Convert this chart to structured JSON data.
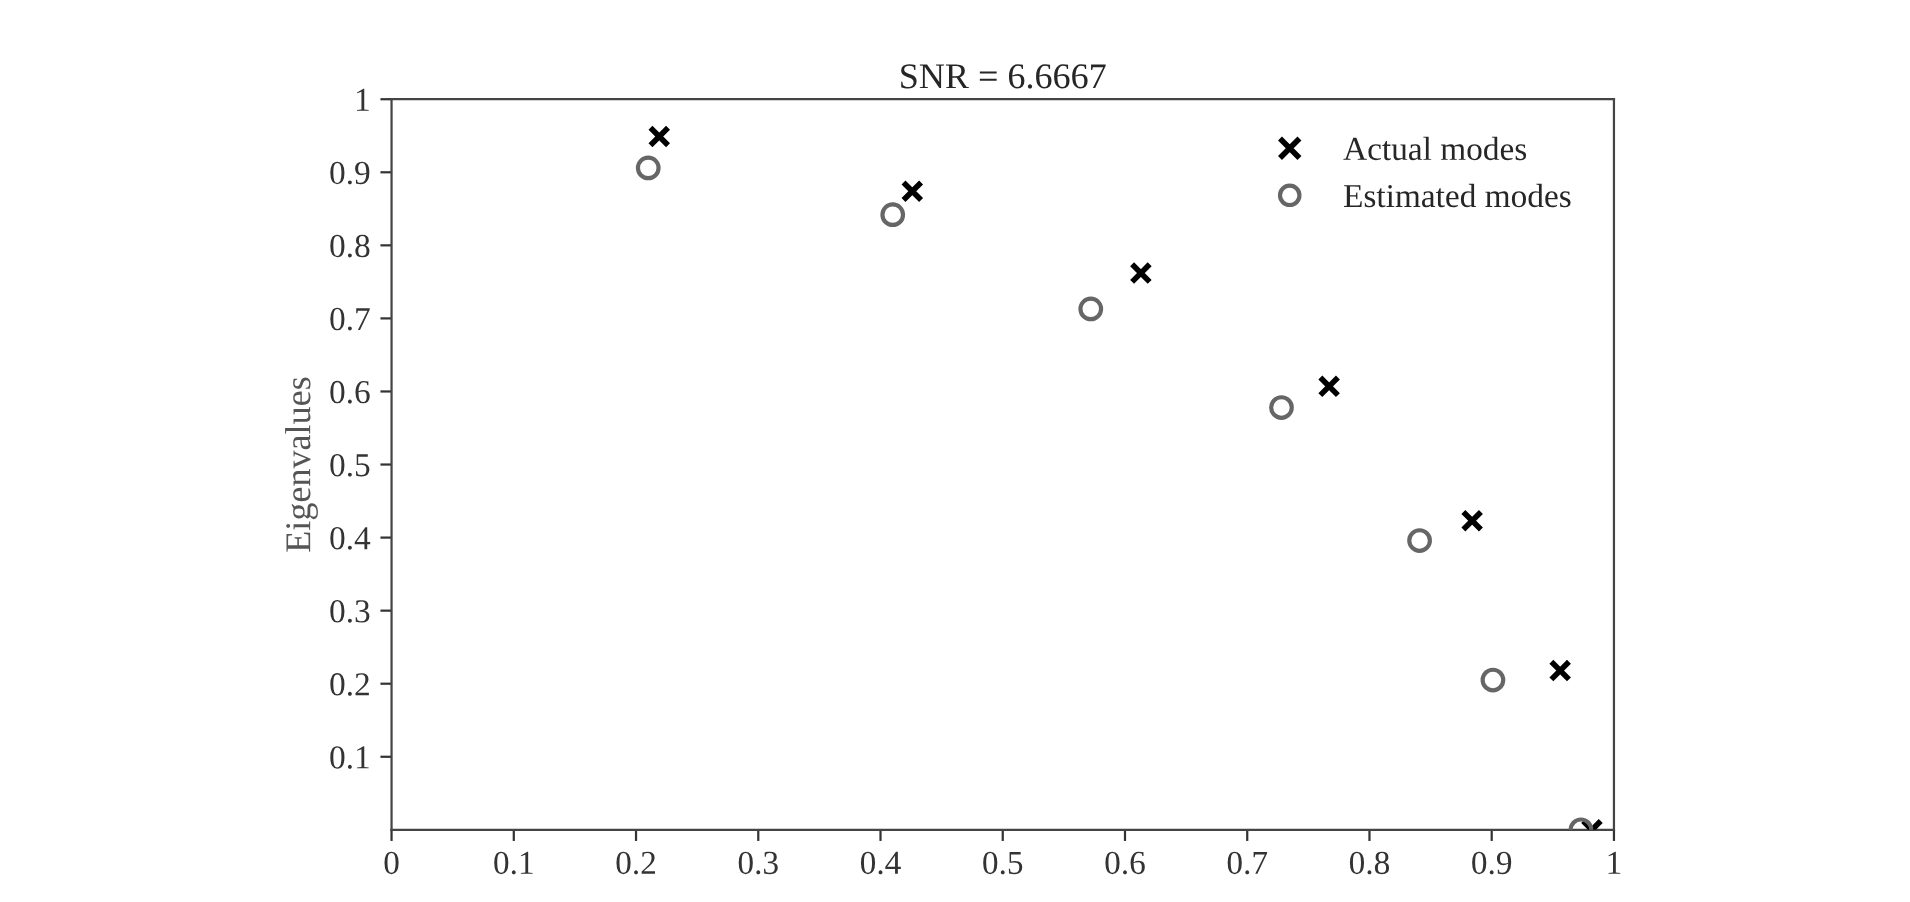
{
  "chart_data": {
    "type": "scatter",
    "title": "SNR = 6.6667",
    "ylabel": "Eigenvalues",
    "xlim": [
      0,
      1
    ],
    "ylim": [
      0,
      1
    ],
    "xticks": [
      0,
      0.1,
      0.2,
      0.3,
      0.4,
      0.5,
      0.6,
      0.7,
      0.8,
      0.9,
      1
    ],
    "yticks": [
      0.1,
      0.2,
      0.3,
      0.4,
      0.5,
      0.6,
      0.7,
      0.8,
      0.9,
      1
    ],
    "grid": false,
    "legend": "top right",
    "series": [
      {
        "name": "Actual modes",
        "color": "#000000",
        "marker": "cross",
        "x": [
          0.219,
          0.426,
          0.613,
          0.767,
          0.884,
          0.956,
          0.982
        ],
        "values": [
          0.949,
          0.874,
          0.762,
          0.607,
          0.423,
          0.218,
          0.0
        ]
      },
      {
        "name": "Estimated modes",
        "color": "#666666",
        "marker": "circle",
        "x": [
          0.21,
          0.41,
          0.572,
          0.728,
          0.841,
          0.901,
          0.973
        ],
        "values": [
          0.906,
          0.842,
          0.713,
          0.578,
          0.396,
          0.205,
          0.0
        ]
      }
    ]
  }
}
